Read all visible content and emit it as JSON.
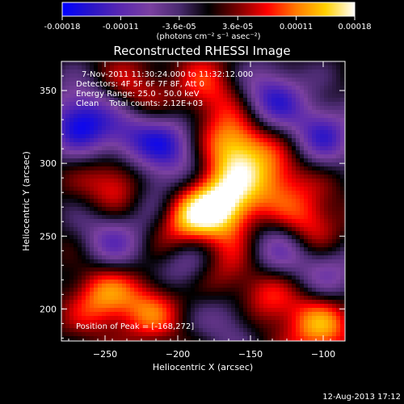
{
  "colorbar": {
    "colors": [
      "#0000ff",
      "#2a15c8",
      "#5a28b0",
      "#7a40a0",
      "#4a2a70",
      "#000000",
      "#7a0000",
      "#ff0000",
      "#ff7a00",
      "#ffd000",
      "#ffffff"
    ],
    "ticks": [
      "-0.00018",
      "-0.00011",
      "-3.6e-05",
      "3.6e-05",
      "0.00011",
      "0.00018"
    ],
    "unit_label": "(photons cm⁻² s⁻¹ asec⁻²)"
  },
  "chart_data": {
    "type": "heatmap",
    "title": "Reconstructed RHESSI Image",
    "xlabel": "Heliocentric X (arcsec)",
    "ylabel": "Heliocentric Y (arcsec)",
    "xlim": [
      -280,
      -85
    ],
    "ylim": [
      178,
      370
    ],
    "x_ticks": [
      -250,
      -200,
      -150,
      -100
    ],
    "y_ticks": [
      200,
      250,
      300,
      350
    ],
    "colorbar_range": [
      -0.00018,
      0.00018
    ],
    "peak_position": [
      -168,
      272
    ],
    "sources": [
      {
        "x": -168,
        "y": 272,
        "value": 0.00018
      },
      {
        "x": -160,
        "y": 312,
        "value": 0.00015
      },
      {
        "x": -195,
        "y": 262,
        "value": 0.00014
      },
      {
        "x": -240,
        "y": 287,
        "value": 0.00012
      },
      {
        "x": -252,
        "y": 208,
        "value": 0.00011
      },
      {
        "x": -102,
        "y": 188,
        "value": 0.00012
      },
      {
        "x": -110,
        "y": 258,
        "value": 0.0001
      },
      {
        "x": -140,
        "y": 205,
        "value": 0.0001
      },
      {
        "x": -133,
        "y": 290,
        "value": 0.0001
      },
      {
        "x": -218,
        "y": 200,
        "value": 9e-05
      },
      {
        "x": -180,
        "y": 350,
        "value": 8e-05
      },
      {
        "x": -230,
        "y": 348,
        "value": 7e-05
      },
      {
        "x": -170,
        "y": 225,
        "value": 9e-05
      },
      {
        "x": -268,
        "y": 330,
        "value": -0.00016
      },
      {
        "x": -235,
        "y": 318,
        "value": -0.00012
      },
      {
        "x": -205,
        "y": 312,
        "value": -0.00011
      },
      {
        "x": -135,
        "y": 345,
        "value": -0.00013
      },
      {
        "x": -100,
        "y": 320,
        "value": -0.00012
      },
      {
        "x": -130,
        "y": 240,
        "value": -0.0001
      },
      {
        "x": -190,
        "y": 230,
        "value": -0.0001
      },
      {
        "x": -245,
        "y": 248,
        "value": -0.0001
      },
      {
        "x": -215,
        "y": 280,
        "value": -9e-05
      },
      {
        "x": -160,
        "y": 195,
        "value": -9e-05
      },
      {
        "x": -95,
        "y": 225,
        "value": -8e-05
      }
    ]
  },
  "annotations": {
    "time_range": "7-Nov-2011 11:30:24.000 to 11:32:12.000",
    "detectors": "Detectors: 4F 5F 6F 7F 8F, Att 0",
    "energy_range": "Energy Range: 25.0 - 50.0 keV",
    "clean_info": "Clean    Total counts: 2.12E+03",
    "peak_position": "Position of Peak = [-168,272]"
  },
  "footer": {
    "timestamp": "12-Aug-2013 17:12"
  }
}
